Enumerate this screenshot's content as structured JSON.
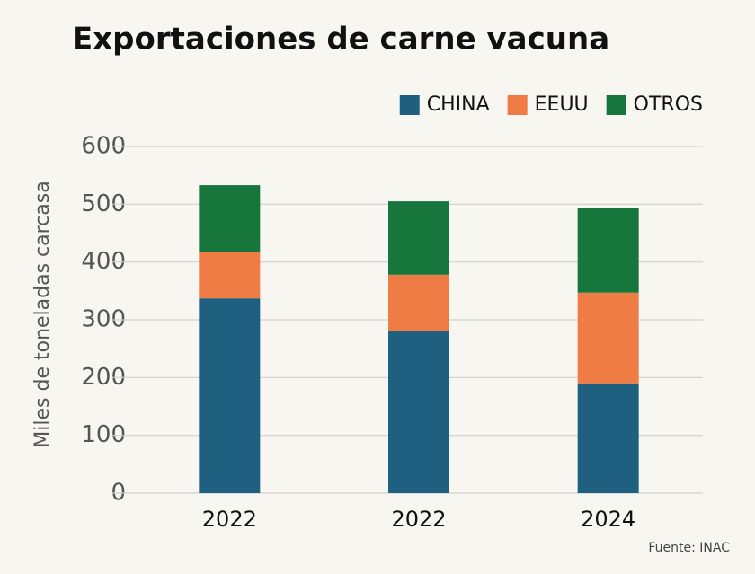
{
  "chart_data": {
    "type": "stacked_bar",
    "title": "Exportaciones de carne vacuna",
    "y_label": "Miles de toneladas carcasa",
    "source": "Fuente: INAC",
    "categories": [
      "2022",
      "2022",
      "2024"
    ],
    "series": [
      {
        "name": "CHINA",
        "color": "#1f5f80",
        "values": [
          337,
          280,
          190
        ]
      },
      {
        "name": "EEUU",
        "color": "#f07c45",
        "values": [
          80,
          98,
          157
        ]
      },
      {
        "name": "OTROS",
        "color": "#17763b",
        "values": [
          116,
          127,
          147
        ]
      }
    ],
    "ylim": [
      0,
      600
    ],
    "yticks": [
      0,
      100,
      200,
      300,
      400,
      500,
      600
    ],
    "grid": true,
    "legend": "top-right"
  }
}
